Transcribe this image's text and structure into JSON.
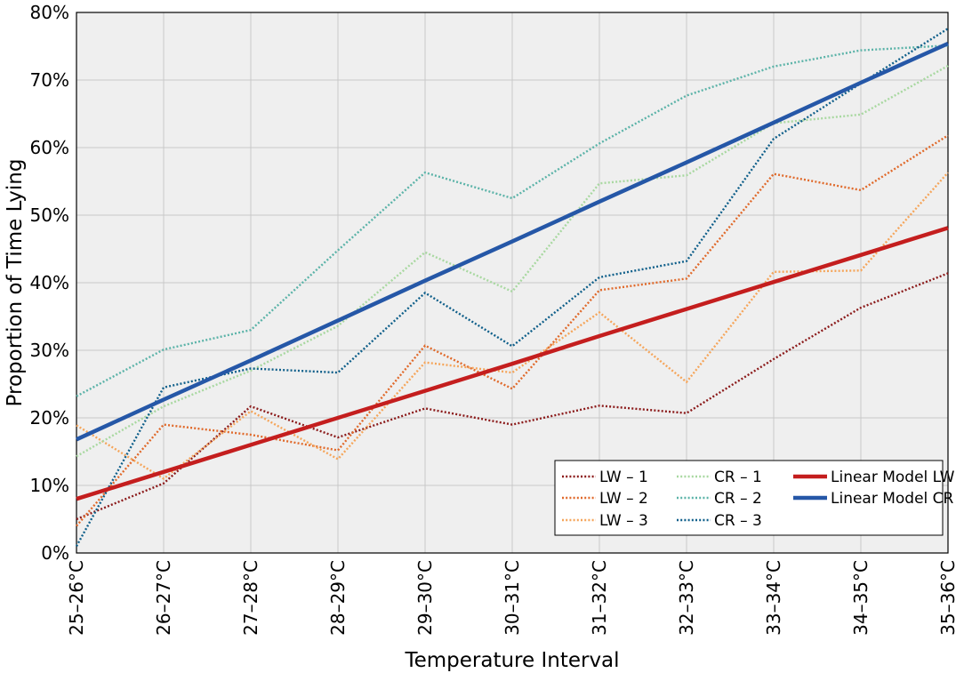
{
  "chart_data": {
    "type": "line",
    "title": "",
    "xlabel": "Temperature Interval",
    "ylabel": "Proportion of Time Lying",
    "categories": [
      "25–26°C",
      "26–27°C",
      "27–28°C",
      "28–29°C",
      "29–30°C",
      "30–31°C",
      "31–32°C",
      "32–33°C",
      "33–34°C",
      "34–35°C",
      "35–36°C"
    ],
    "yticks": [
      "0%",
      "10%",
      "20%",
      "30%",
      "40%",
      "50%",
      "60%",
      "70%",
      "80%"
    ],
    "ylim": [
      0,
      80
    ],
    "grid": true,
    "legend_position": "bottom-right",
    "series": [
      {
        "name": "LW – 1",
        "style": "dotted",
        "color": "#8b1a1a",
        "values": [
          5,
          10.3,
          21.7,
          17.1,
          21.4,
          19,
          21.8,
          20.7,
          28.7,
          36.3,
          41.4
        ]
      },
      {
        "name": "LW – 2",
        "style": "dotted",
        "color": "#e0692a",
        "values": [
          4,
          19,
          17.5,
          15.2,
          30.7,
          24.3,
          38.9,
          40.6,
          56.1,
          53.7,
          61.8
        ]
      },
      {
        "name": "LW – 3",
        "style": "dotted",
        "color": "#f5a55a",
        "values": [
          18.9,
          11,
          21,
          13.9,
          28.2,
          26.7,
          35.6,
          25.3,
          41.6,
          41.8,
          56.3
        ]
      },
      {
        "name": "CR – 1",
        "style": "dotted",
        "color": "#a8d8a0",
        "values": [
          14.3,
          21.7,
          27,
          33.6,
          44.5,
          38.7,
          54.7,
          55.9,
          63.6,
          64.9,
          72.1
        ]
      },
      {
        "name": "CR – 2",
        "style": "dotted",
        "color": "#5bb3a8",
        "values": [
          23.2,
          30.1,
          33,
          44.8,
          56.3,
          52.5,
          60.6,
          67.7,
          72,
          74.4,
          75.1
        ]
      },
      {
        "name": "CR – 3",
        "style": "dotted",
        "color": "#0f5f8a",
        "values": [
          1,
          24.5,
          27.3,
          26.7,
          38.5,
          30.6,
          40.8,
          43.2,
          61.3,
          69.5,
          77.6
        ]
      },
      {
        "name": "Linear Model LW",
        "style": "solid",
        "color": "#c41e1e",
        "values": [
          8,
          12,
          16,
          20,
          24,
          28,
          32.1,
          36.1,
          40.1,
          44.1,
          48.1
        ]
      },
      {
        "name": "Linear Model CR",
        "style": "solid",
        "color": "#2557a7",
        "values": [
          16.8,
          22.7,
          28.5,
          34.4,
          40.3,
          46.1,
          52,
          57.8,
          63.7,
          69.6,
          75.4
        ]
      }
    ]
  }
}
